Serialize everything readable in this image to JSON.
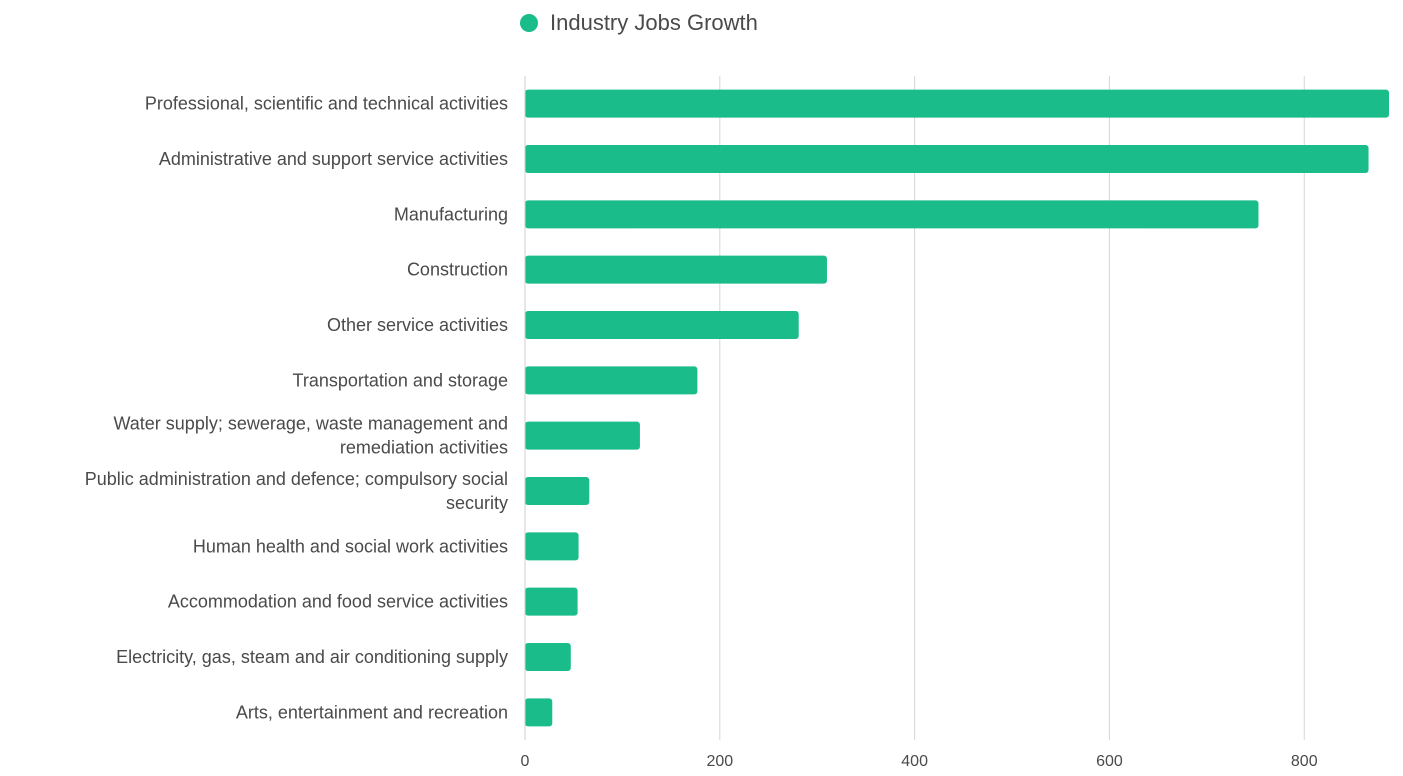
{
  "legend": {
    "label": "Industry Jobs Growth",
    "color": "#1abc8a"
  },
  "chart_data": {
    "type": "bar",
    "orientation": "horizontal",
    "categories": [
      [
        "Professional, scientific and technical activities"
      ],
      [
        "Administrative and support service activities"
      ],
      [
        "Manufacturing"
      ],
      [
        "Construction"
      ],
      [
        "Other service activities"
      ],
      [
        "Transportation and storage"
      ],
      [
        "Water supply; sewerage, waste management and",
        "remediation activities"
      ],
      [
        "Public administration and defence; compulsory social",
        "security"
      ],
      [
        "Human health and social work activities"
      ],
      [
        "Accommodation and food service activities"
      ],
      [
        "Electricity, gas, steam and air conditioning supply"
      ],
      [
        "Arts, entertainment and recreation"
      ]
    ],
    "series": [
      {
        "name": "Industry Jobs Growth",
        "values": [
          887,
          866,
          753,
          310,
          281,
          177,
          118,
          66,
          55,
          54,
          47,
          28
        ],
        "color": "#1abc8a"
      }
    ],
    "xlim": [
      0,
      887
    ],
    "xticks": [
      0,
      200,
      400,
      600,
      800
    ],
    "grid": true,
    "legend_position": "top-center"
  }
}
